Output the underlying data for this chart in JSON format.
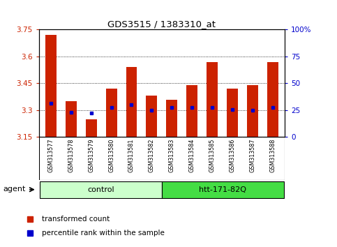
{
  "title": "GDS3515 / 1383310_at",
  "samples": [
    "GSM313577",
    "GSM313578",
    "GSM313579",
    "GSM313580",
    "GSM313581",
    "GSM313582",
    "GSM313583",
    "GSM313584",
    "GSM313585",
    "GSM313586",
    "GSM313587",
    "GSM313588"
  ],
  "bar_tops": [
    3.72,
    3.35,
    3.25,
    3.42,
    3.54,
    3.38,
    3.36,
    3.44,
    3.57,
    3.42,
    3.44,
    3.57
  ],
  "bar_bottom": 3.15,
  "percentile_values": [
    3.34,
    3.29,
    3.285,
    3.315,
    3.33,
    3.3,
    3.315,
    3.315,
    3.315,
    3.305,
    3.3,
    3.315
  ],
  "ylim_left": [
    3.15,
    3.75
  ],
  "yticks_left": [
    3.15,
    3.3,
    3.45,
    3.6,
    3.75
  ],
  "ytick_labels_left": [
    "3.15",
    "3.3",
    "3.45",
    "3.6",
    "3.75"
  ],
  "ylim_right": [
    0,
    100
  ],
  "yticks_right": [
    0,
    25,
    50,
    75,
    100
  ],
  "ytick_labels_right": [
    "0",
    "25",
    "50",
    "75",
    "100%"
  ],
  "bar_color": "#cc2200",
  "percentile_color": "#0000cc",
  "grid_color": "#000000",
  "bg_color": "#ffffff",
  "plot_bg": "#ffffff",
  "control_label": "control",
  "treatment_label": "htt-171-82Q",
  "agent_label": "agent",
  "legend_bar_label": "transformed count",
  "legend_pct_label": "percentile rank within the sample",
  "control_bg": "#ccffcc",
  "treatment_bg": "#44dd44",
  "tick_area_bg": "#cccccc",
  "left_axis_color": "#cc2200",
  "right_axis_color": "#0000cc"
}
